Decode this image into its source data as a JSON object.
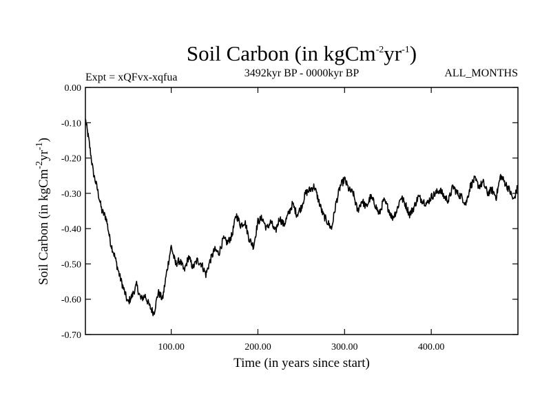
{
  "chart_data": {
    "type": "line",
    "title": "Soil Carbon (in kgCm",
    "title_sup1": "-2",
    "title_mid": "yr",
    "title_sup2": "-1",
    "title_end": ")",
    "left_label": "Expt = xQFvx-xqfua",
    "center_label": "3492kyr BP - 0000kyr BP",
    "right_label": "ALL_MONTHS",
    "xlabel": "Time (in years since start)",
    "ylabel": "Soil Carbon (in kgCm",
    "ylabel_sup1": "-2",
    "ylabel_mid": "yr",
    "ylabel_sup2": "-1",
    "ylabel_end": ")",
    "xlim": [
      1,
      500
    ],
    "ylim": [
      -0.7,
      0.0
    ],
    "xticks": [
      100,
      200,
      300,
      400
    ],
    "xtick_labels": [
      "100.00",
      "200.00",
      "300.00",
      "400.00"
    ],
    "yticks": [
      0.0,
      -0.1,
      -0.2,
      -0.3,
      -0.4,
      -0.5,
      -0.6,
      -0.7
    ],
    "ytick_labels": [
      "0.00",
      "-0.10",
      "-0.20",
      "-0.30",
      "-0.40",
      "-0.50",
      "-0.60",
      "-0.70"
    ],
    "series": [
      {
        "name": "Soil Carbon",
        "color": "#000000",
        "x": [
          1,
          5,
          10,
          15,
          20,
          25,
          30,
          35,
          40,
          45,
          50,
          55,
          60,
          65,
          70,
          75,
          80,
          85,
          90,
          95,
          100,
          105,
          110,
          115,
          120,
          125,
          130,
          135,
          140,
          145,
          150,
          155,
          160,
          165,
          170,
          175,
          180,
          185,
          190,
          195,
          200,
          205,
          210,
          215,
          220,
          225,
          230,
          235,
          240,
          245,
          250,
          255,
          260,
          265,
          270,
          275,
          280,
          285,
          290,
          295,
          300,
          305,
          310,
          315,
          320,
          325,
          330,
          335,
          340,
          345,
          350,
          355,
          360,
          365,
          370,
          375,
          380,
          385,
          390,
          395,
          400,
          405,
          410,
          415,
          420,
          425,
          430,
          435,
          440,
          445,
          450,
          455,
          460,
          465,
          470,
          475,
          480,
          485,
          490,
          495,
          500
        ],
        "y": [
          -0.09,
          -0.15,
          -0.24,
          -0.29,
          -0.35,
          -0.37,
          -0.44,
          -0.48,
          -0.53,
          -0.57,
          -0.61,
          -0.59,
          -0.56,
          -0.6,
          -0.59,
          -0.62,
          -0.64,
          -0.58,
          -0.6,
          -0.52,
          -0.45,
          -0.5,
          -0.49,
          -0.52,
          -0.48,
          -0.51,
          -0.49,
          -0.5,
          -0.53,
          -0.49,
          -0.46,
          -0.47,
          -0.43,
          -0.44,
          -0.42,
          -0.36,
          -0.39,
          -0.38,
          -0.43,
          -0.45,
          -0.38,
          -0.37,
          -0.4,
          -0.38,
          -0.41,
          -0.37,
          -0.39,
          -0.36,
          -0.33,
          -0.36,
          -0.34,
          -0.3,
          -0.29,
          -0.28,
          -0.32,
          -0.36,
          -0.38,
          -0.4,
          -0.33,
          -0.28,
          -0.26,
          -0.29,
          -0.3,
          -0.35,
          -0.32,
          -0.34,
          -0.31,
          -0.33,
          -0.36,
          -0.32,
          -0.34,
          -0.37,
          -0.35,
          -0.31,
          -0.33,
          -0.36,
          -0.34,
          -0.31,
          -0.32,
          -0.33,
          -0.31,
          -0.3,
          -0.29,
          -0.31,
          -0.32,
          -0.28,
          -0.3,
          -0.31,
          -0.33,
          -0.28,
          -0.26,
          -0.28,
          -0.27,
          -0.3,
          -0.29,
          -0.31,
          -0.25,
          -0.27,
          -0.29,
          -0.32,
          -0.28
        ]
      }
    ]
  }
}
